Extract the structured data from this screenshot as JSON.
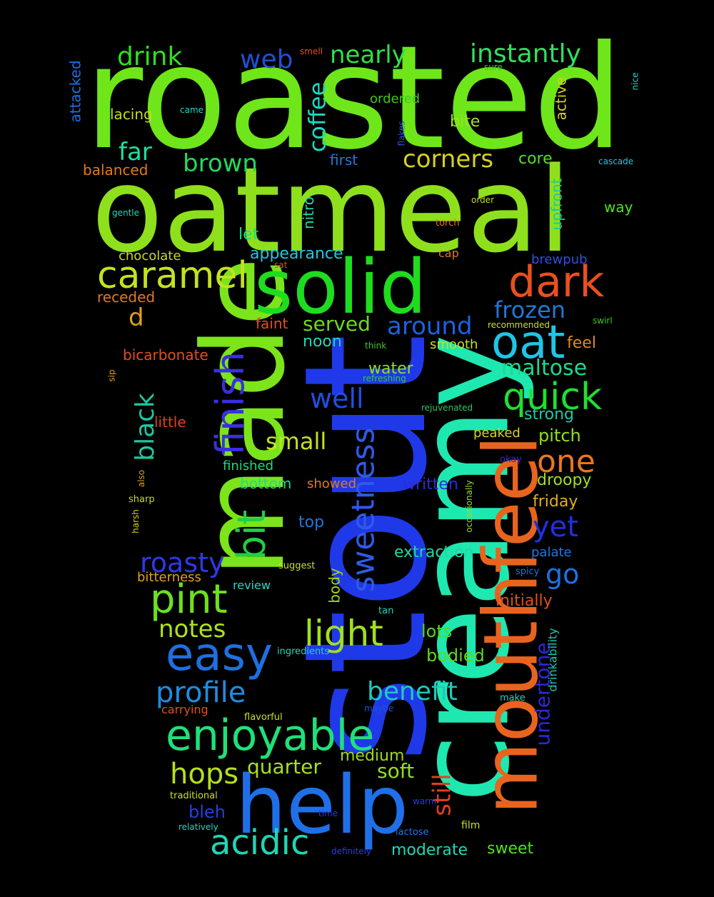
{
  "words": [
    {
      "text": "roasted",
      "color": "#6ee61a"
    },
    {
      "text": "oatmeal",
      "color": "#8fe01c"
    },
    {
      "text": "made",
      "color": "#7ce41b"
    },
    {
      "text": "stout",
      "color": "#1f39e8"
    },
    {
      "text": "creamy",
      "color": "#1ee8b0"
    },
    {
      "text": "mouthfeel",
      "color": "#e8641e"
    },
    {
      "text": "solid",
      "color": "#1fdc1f"
    },
    {
      "text": "help",
      "color": "#1f70e8"
    },
    {
      "text": "caramel",
      "color": "#c4e21f"
    },
    {
      "text": "dark",
      "color": "#e8501e"
    },
    {
      "text": "oat",
      "color": "#21c4e4"
    },
    {
      "text": "easy",
      "color": "#1f6fe0"
    },
    {
      "text": "enjoyable",
      "color": "#1fe07a"
    },
    {
      "text": "pint",
      "color": "#6de01f"
    },
    {
      "text": "finish",
      "color": "#3a2fe0"
    },
    {
      "text": "bit",
      "color": "#1fd045"
    },
    {
      "text": "sweetness",
      "color": "#2f5ae8"
    },
    {
      "text": "quick",
      "color": "#1fe030"
    },
    {
      "text": "light",
      "color": "#a0e01f"
    },
    {
      "text": "roasty",
      "color": "#2f38e8"
    },
    {
      "text": "one",
      "color": "#e8781e"
    },
    {
      "text": "profile",
      "color": "#1f8de0"
    },
    {
      "text": "acidic",
      "color": "#1fd6b5"
    },
    {
      "text": "hops",
      "color": "#b4e01f"
    },
    {
      "text": "benefit",
      "color": "#1fc8c0"
    },
    {
      "text": "well",
      "color": "#1f4fe0"
    },
    {
      "text": "drink",
      "color": "#30e01f"
    },
    {
      "text": "instantly",
      "color": "#2fe060"
    },
    {
      "text": "nearly",
      "color": "#2fe046"
    },
    {
      "text": "web",
      "color": "#1f50d8"
    },
    {
      "text": "coffee",
      "color": "#1ed8c0"
    },
    {
      "text": "corners",
      "color": "#d8d01f"
    },
    {
      "text": "brown",
      "color": "#22d860"
    },
    {
      "text": "far",
      "color": "#1ee0a0"
    },
    {
      "text": "frozen",
      "color": "#1f78d8"
    },
    {
      "text": "around",
      "color": "#1f60e0"
    },
    {
      "text": "served",
      "color": "#70d81f"
    },
    {
      "text": "maltose",
      "color": "#1ed890"
    },
    {
      "text": "small",
      "color": "#c6e01f"
    },
    {
      "text": "black",
      "color": "#1ec8a0"
    },
    {
      "text": "notes",
      "color": "#b0e01f"
    },
    {
      "text": "yet",
      "color": "#2030e0"
    },
    {
      "text": "go",
      "color": "#1f70e0"
    },
    {
      "text": "still",
      "color": "#e0401e"
    },
    {
      "text": "undertone",
      "color": "#2c28d8"
    },
    {
      "text": "quarter",
      "color": "#a8e01f"
    },
    {
      "text": "soft",
      "color": "#90e01f"
    },
    {
      "text": "moderate",
      "color": "#1ed8b8"
    },
    {
      "text": "sweet",
      "color": "#50e01f"
    },
    {
      "text": "bleh",
      "color": "#2040e0"
    },
    {
      "text": "medium",
      "color": "#a0d81f"
    },
    {
      "text": "lots",
      "color": "#50d81f"
    },
    {
      "text": "bodied",
      "color": "#60d81f"
    },
    {
      "text": "water",
      "color": "#90e01f"
    },
    {
      "text": "extraction",
      "color": "#1ed8a0"
    },
    {
      "text": "pitch",
      "color": "#90e01f"
    },
    {
      "text": "droopy",
      "color": "#a0e01f"
    },
    {
      "text": "strong",
      "color": "#1ec8a8"
    },
    {
      "text": "friday",
      "color": "#e0b01e"
    },
    {
      "text": "written",
      "color": "#3028e0"
    },
    {
      "text": "initially",
      "color": "#e0501e"
    },
    {
      "text": "top",
      "color": "#1f78d8"
    },
    {
      "text": "palate",
      "color": "#1f78e0"
    },
    {
      "text": "feel",
      "color": "#e08a1e"
    },
    {
      "text": "smooth",
      "color": "#c8e01f"
    },
    {
      "text": "noon",
      "color": "#1ed8b8"
    },
    {
      "text": "faint",
      "color": "#e0501e"
    },
    {
      "text": "appearance",
      "color": "#1ec8e0"
    },
    {
      "text": "let",
      "color": "#1ed880"
    },
    {
      "text": "chocolate",
      "color": "#c8d81f"
    },
    {
      "text": "receded",
      "color": "#e07a1e"
    },
    {
      "text": "d",
      "color": "#e0a01e"
    },
    {
      "text": "bicarbonate",
      "color": "#e0501e"
    },
    {
      "text": "little",
      "color": "#e0401e"
    },
    {
      "text": "finished",
      "color": "#1ed880"
    },
    {
      "text": "bottom",
      "color": "#1ed8a0"
    },
    {
      "text": "showed",
      "color": "#e07a1e"
    },
    {
      "text": "bitterness",
      "color": "#e0a01e"
    },
    {
      "text": "review",
      "color": "#1ed8c0"
    },
    {
      "text": "body",
      "color": "#a0d81f"
    },
    {
      "text": "upfront",
      "color": "#1ec8a8"
    },
    {
      "text": "active",
      "color": "#d8d01f"
    },
    {
      "text": "core",
      "color": "#50e01f"
    },
    {
      "text": "first",
      "color": "#1f78e0"
    },
    {
      "text": "nitro",
      "color": "#1ed8b0"
    },
    {
      "text": "bite",
      "color": "#a0e01f"
    },
    {
      "text": "ordered",
      "color": "#40c81f"
    },
    {
      "text": "lacing",
      "color": "#c8d81f"
    },
    {
      "text": "balanced",
      "color": "#e07a1e"
    },
    {
      "text": "attacked",
      "color": "#1f70e0"
    },
    {
      "text": "way",
      "color": "#50e01f"
    },
    {
      "text": "brewpub",
      "color": "#2f4fe0"
    },
    {
      "text": "cap",
      "color": "#e07a1e"
    },
    {
      "text": "carrying",
      "color": "#e0501e"
    },
    {
      "text": "drinkability",
      "color": "#1ec8a8"
    },
    {
      "text": "ingredients",
      "color": "#1ed8b8"
    },
    {
      "text": "suggest",
      "color": "#c8e01f"
    },
    {
      "text": "traditional",
      "color": "#c8e01f"
    },
    {
      "text": "relatively",
      "color": "#1ed8c0"
    },
    {
      "text": "definitely",
      "color": "#2f38e8"
    },
    {
      "text": "lactose",
      "color": "#1f78e0"
    },
    {
      "text": "film",
      "color": "#c8e01f"
    },
    {
      "text": "warm",
      "color": "#2f38e8"
    },
    {
      "text": "time",
      "color": "#2f38e8"
    },
    {
      "text": "maybe",
      "color": "#1f4fe0"
    },
    {
      "text": "make",
      "color": "#1ed8b0"
    },
    {
      "text": "flavorful",
      "color": "#c8e01f"
    },
    {
      "text": "tan",
      "color": "#1ed8b8"
    },
    {
      "text": "spicy",
      "color": "#1f70e0"
    },
    {
      "text": "okay",
      "color": "#2030e0"
    },
    {
      "text": "occasionally",
      "color": "#a0d81f"
    },
    {
      "text": "peaked",
      "color": "#d8d01f"
    },
    {
      "text": "rejuvenated",
      "color": "#30c860"
    },
    {
      "text": "refreshing",
      "color": "#30c840"
    },
    {
      "text": "think",
      "color": "#40c81f"
    },
    {
      "text": "recommended",
      "color": "#c8e01f"
    },
    {
      "text": "swirl",
      "color": "#40c81f"
    },
    {
      "text": "sat",
      "color": "#e0501e"
    },
    {
      "text": "torch",
      "color": "#e07a1e"
    },
    {
      "text": "order",
      "color": "#c8d81f"
    },
    {
      "text": "gentle",
      "color": "#1ed8c0"
    },
    {
      "text": "cascade",
      "color": "#1ec8e0"
    },
    {
      "text": "flakes",
      "color": "#2f4fe0"
    },
    {
      "text": "came",
      "color": "#1ed8c0"
    },
    {
      "text": "smell",
      "color": "#e0501e"
    },
    {
      "text": "sure",
      "color": "#40c81f"
    },
    {
      "text": "nice",
      "color": "#1ed8c0"
    },
    {
      "text": "sharp",
      "color": "#c8d81f"
    },
    {
      "text": "harsh",
      "color": "#d8d01f"
    },
    {
      "text": "also",
      "color": "#e0a01e"
    },
    {
      "text": "sip",
      "color": "#e0a01e"
    }
  ]
}
